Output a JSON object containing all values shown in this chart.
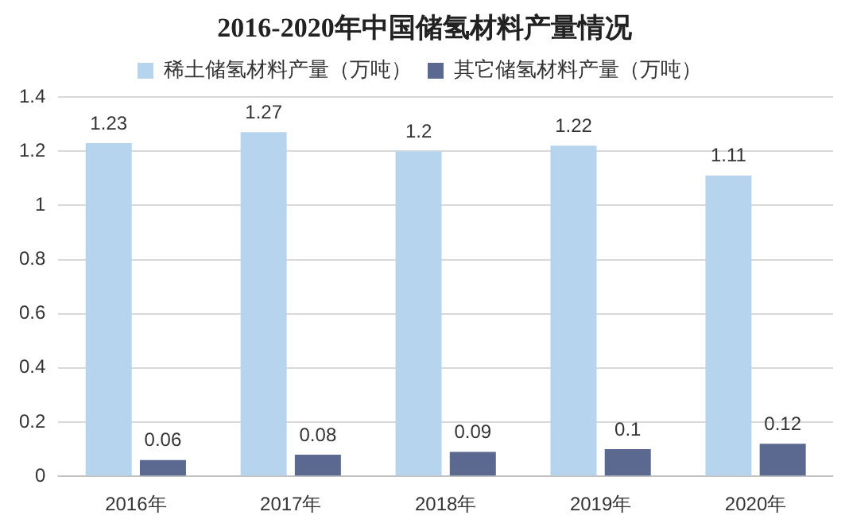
{
  "chart_data": {
    "type": "bar",
    "title": "2016-2020年中国储氢材料产量情况",
    "categories": [
      "2016年",
      "2017年",
      "2018年",
      "2019年",
      "2020年"
    ],
    "series": [
      {
        "name": "稀土储氢材料产量（万吨）",
        "color": "#b7d4ee",
        "values": [
          1.23,
          1.27,
          1.2,
          1.22,
          1.11
        ]
      },
      {
        "name": "其它储氢材料产量（万吨）",
        "color": "#5b6890",
        "values": [
          0.06,
          0.08,
          0.09,
          0.1,
          0.12
        ]
      }
    ],
    "ylim": [
      0,
      1.4
    ],
    "yticks": [
      0,
      0.2,
      0.4,
      0.6,
      0.8,
      1,
      1.2,
      1.4
    ],
    "grid": "y",
    "legend": "top",
    "data_labels": true
  }
}
